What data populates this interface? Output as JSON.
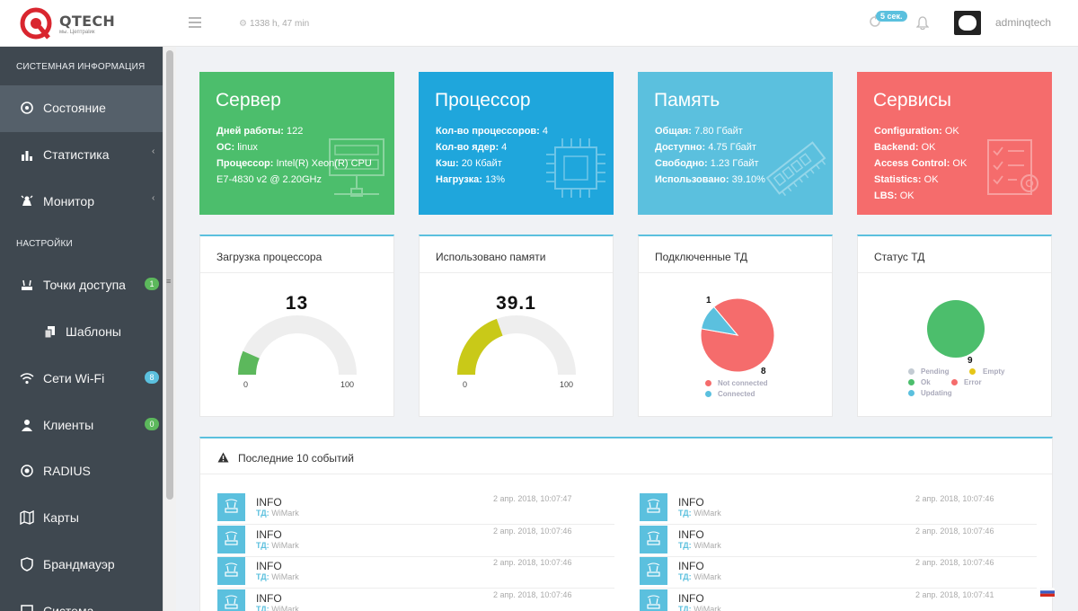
{
  "header": {
    "logo_text": "QTECH",
    "logo_sub": "мы. Цептраlик",
    "uptime": "1338 h, 47 min",
    "refresh_badge": "5 сек.",
    "username": "adminqtech"
  },
  "sidebar": {
    "section_system": "СИСТЕМНАЯ ИНФОРМАЦИЯ",
    "section_settings": "НАСТРОЙКИ",
    "items": [
      {
        "label": "Состояние",
        "icon": "dashboard-icon"
      },
      {
        "label": "Статистика",
        "icon": "bar-chart-icon",
        "arrow": "‹"
      },
      {
        "label": "Монитор",
        "icon": "monitor-icon",
        "arrow": "‹"
      },
      {
        "label": "Точки доступа",
        "icon": "access-point-icon",
        "badge": "1",
        "badge_color": "#5cb85c"
      },
      {
        "label": "Шаблоны",
        "icon": "templates-icon"
      },
      {
        "label": "Сети Wi-Fi",
        "icon": "wifi-icon",
        "badge": "8",
        "badge_color": "#5bc0de"
      },
      {
        "label": "Клиенты",
        "icon": "user-icon",
        "badge": "0",
        "badge_color": "#5cb85c"
      },
      {
        "label": "RADIUS",
        "icon": "radius-icon"
      },
      {
        "label": "Карты",
        "icon": "map-icon"
      },
      {
        "label": "Брандмауэр",
        "icon": "shield-icon"
      },
      {
        "label": "Система",
        "icon": "system-icon"
      }
    ]
  },
  "cards": {
    "server": {
      "title": "Сервер",
      "uptime_label": "Дней работы:",
      "uptime_value": "122",
      "os_label": "OC:",
      "os_value": "linux",
      "cpu_label": "Процессор:",
      "cpu_value": "Intel(R) Xeon(R) CPU",
      "cpu_value2": "E7-4830 v2 @ 2.20GHz",
      "color": "#4cbe6c"
    },
    "processor": {
      "title": "Процессор",
      "count_label": "Кол-во процессоров:",
      "count_value": "4",
      "cores_label": "Кол-во ядер:",
      "cores_value": "4",
      "cache_label": "Кэш:",
      "cache_value": "20 Кбайт",
      "load_label": "Нагрузка:",
      "load_value": "13%",
      "color": "#1fa6dc"
    },
    "memory": {
      "title": "Память",
      "total_label": "Общая:",
      "total_value": "7.80 Гбайт",
      "avail_label": "Доступно:",
      "avail_value": "4.75 Гбайт",
      "free_label": "Свободно:",
      "free_value": "1.23 Гбайт",
      "used_label": "Использовано:",
      "used_value": "39.10%",
      "color": "#5bc0de"
    },
    "services": {
      "title": "Сервисы",
      "items": [
        {
          "label": "Configuration:",
          "value": "OK"
        },
        {
          "label": "Backend:",
          "value": "OK"
        },
        {
          "label": "Access Control:",
          "value": "OK"
        },
        {
          "label": "Statistics:",
          "value": "OK"
        },
        {
          "label": "LBS:",
          "value": "OK"
        }
      ],
      "color": "#f56c6c"
    }
  },
  "widgets": {
    "cpu": {
      "title": "Загрузка процессора",
      "value": "13",
      "value_num": 13,
      "unit": "%",
      "min": "0",
      "max": "100",
      "color": "#5cb85c"
    },
    "mem": {
      "title": "Использовано памяти",
      "value": "39.1",
      "value_num": 39.1,
      "unit": "%",
      "min": "0",
      "max": "100",
      "color": "#c9c918"
    },
    "connected": {
      "title": "Подключенные ТД",
      "label_small": "1",
      "label_big": "8",
      "legend": [
        {
          "label": "Not connected",
          "color": "#f56c6c"
        },
        {
          "label": "Connected",
          "color": "#5bc0de"
        }
      ]
    },
    "status": {
      "title": "Статус ТД",
      "label_value": "9",
      "legend": [
        {
          "label": "Pending",
          "color": "#c3cbd3"
        },
        {
          "label": "Empty",
          "color": "#e6c618"
        },
        {
          "label": "Ok",
          "color": "#4cbe6c"
        },
        {
          "label": "Error",
          "color": "#f56c6c"
        },
        {
          "label": "Updating",
          "color": "#5bc0de"
        }
      ]
    }
  },
  "chart_data": [
    {
      "type": "pie",
      "title": "Подключенные ТД",
      "categories": [
        "Not connected",
        "Connected"
      ],
      "values": [
        8,
        1
      ]
    },
    {
      "type": "pie",
      "title": "Статус ТД",
      "categories": [
        "Pending",
        "Empty",
        "Ok",
        "Error",
        "Updating"
      ],
      "values": [
        0,
        0,
        9,
        0,
        0
      ]
    }
  ],
  "events": {
    "title": "Последние 10 событий",
    "ap_label": "ТД:",
    "left": [
      {
        "type": "INFO",
        "ap": "WiMark",
        "date": "2 апр. 2018, 10:07:47"
      },
      {
        "type": "INFO",
        "ap": "WiMark",
        "date": "2 апр. 2018, 10:07:46"
      },
      {
        "type": "INFO",
        "ap": "WiMark",
        "date": "2 апр. 2018, 10:07:46"
      },
      {
        "type": "INFO",
        "ap": "WiMark",
        "date": "2 апр. 2018, 10:07:46"
      }
    ],
    "right": [
      {
        "type": "INFO",
        "ap": "WiMark",
        "date": "2 апр. 2018, 10:07:46"
      },
      {
        "type": "INFO",
        "ap": "WiMark",
        "date": "2 апр. 2018, 10:07:46"
      },
      {
        "type": "INFO",
        "ap": "WiMark",
        "date": "2 апр. 2018, 10:07:46"
      },
      {
        "type": "INFO",
        "ap": "WiMark",
        "date": "2 апр. 2018, 10:07:41"
      }
    ]
  }
}
